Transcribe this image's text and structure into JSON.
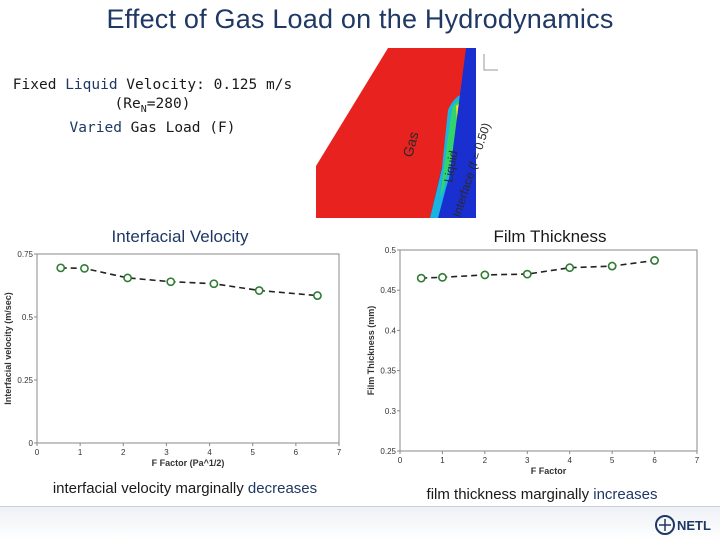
{
  "slide": {
    "title": "Effect of Gas Load on the Hydrodynamics",
    "subtitle_line1_prefix": "Fixed ",
    "subtitle_line1_hl": "Liquid",
    "subtitle_line1_rest": " Velocity: 0.125 m/s (Re",
    "subtitle_sub": "N",
    "subtitle_line1_end": "=280)",
    "subtitle_line2_hl": "Varied",
    "subtitle_line2_rest": " Gas Load (F)",
    "cfd_labels": {
      "gas": "Gas",
      "liquid": "Liquid",
      "interface": "Interface (f = 0.50)"
    },
    "caption_left_prefix": "interfacial velocity marginally ",
    "caption_left_hl": "decreases",
    "caption_right_prefix": "film thickness marginally ",
    "caption_right_hl": "increases",
    "logo_text": "NETL"
  },
  "chart_data": [
    {
      "type": "line",
      "title": "Interfacial Velocity",
      "xlabel": "F Factor (Pa^1/2)",
      "ylabel": "Interfacial velocity (m/sec)",
      "xlim": [
        0,
        7
      ],
      "ylim": [
        0,
        0.75
      ],
      "xticks": [
        "0",
        "1",
        "2",
        "3",
        "4",
        "5",
        "6",
        "7"
      ],
      "yticks": [
        "0",
        "0.25",
        "0.5",
        "0.75"
      ],
      "x": [
        0.55,
        1.1,
        2.1,
        3.1,
        4.1,
        5.15,
        6.5
      ],
      "y": [
        0.695,
        0.693,
        0.655,
        0.64,
        0.632,
        0.605,
        0.585
      ],
      "grid": false,
      "marker": "open-circle-green",
      "line": "dashed-black"
    },
    {
      "type": "line",
      "title": "Film Thickness",
      "xlabel": "F Factor",
      "ylabel": "Film Thickness (mm)",
      "xlim": [
        0,
        7
      ],
      "ylim": [
        0.25,
        0.5
      ],
      "xticks": [
        "0",
        "1",
        "2",
        "3",
        "4",
        "5",
        "6",
        "7"
      ],
      "yticks": [
        "0.25",
        "0.3",
        "0.35",
        "0.4",
        "0.45",
        "0.5"
      ],
      "x": [
        0.5,
        1.0,
        2.0,
        3.0,
        4.0,
        5.0,
        6.0
      ],
      "y": [
        0.465,
        0.466,
        0.469,
        0.47,
        0.478,
        0.48,
        0.487
      ],
      "grid": false,
      "marker": "open-circle-green",
      "line": "dashed-black"
    }
  ],
  "colors": {
    "title": "#1f3864",
    "marker": "#2e7d32",
    "gas": "#e8231f",
    "liquid": "#1a2fd0"
  }
}
